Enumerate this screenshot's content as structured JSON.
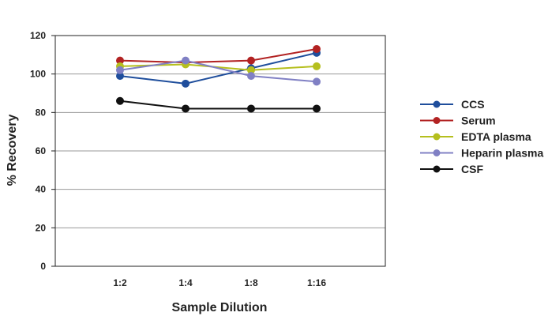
{
  "chart_data": {
    "type": "line",
    "title": "",
    "xlabel": "Sample Dilution",
    "ylabel": "% Recovery",
    "categories": [
      "1:2",
      "1:4",
      "1:8",
      "1:16"
    ],
    "ylim": [
      0,
      120
    ],
    "yticks": [
      0,
      20,
      40,
      60,
      80,
      100,
      120
    ],
    "grid": "horizontal",
    "legend_position": "right",
    "series": [
      {
        "name": "CCS",
        "color": "#1f4e9c",
        "values": [
          99,
          95,
          103,
          111
        ]
      },
      {
        "name": "Serum",
        "color": "#b22222",
        "values": [
          107,
          106,
          107,
          113
        ]
      },
      {
        "name": "EDTA plasma",
        "color": "#b5bf1e",
        "values": [
          104,
          105,
          102,
          104
        ]
      },
      {
        "name": "Heparin plasma",
        "color": "#8080c4",
        "values": [
          102,
          107,
          99,
          96
        ]
      },
      {
        "name": "CSF",
        "color": "#111111",
        "values": [
          86,
          82,
          82,
          82
        ]
      }
    ]
  }
}
